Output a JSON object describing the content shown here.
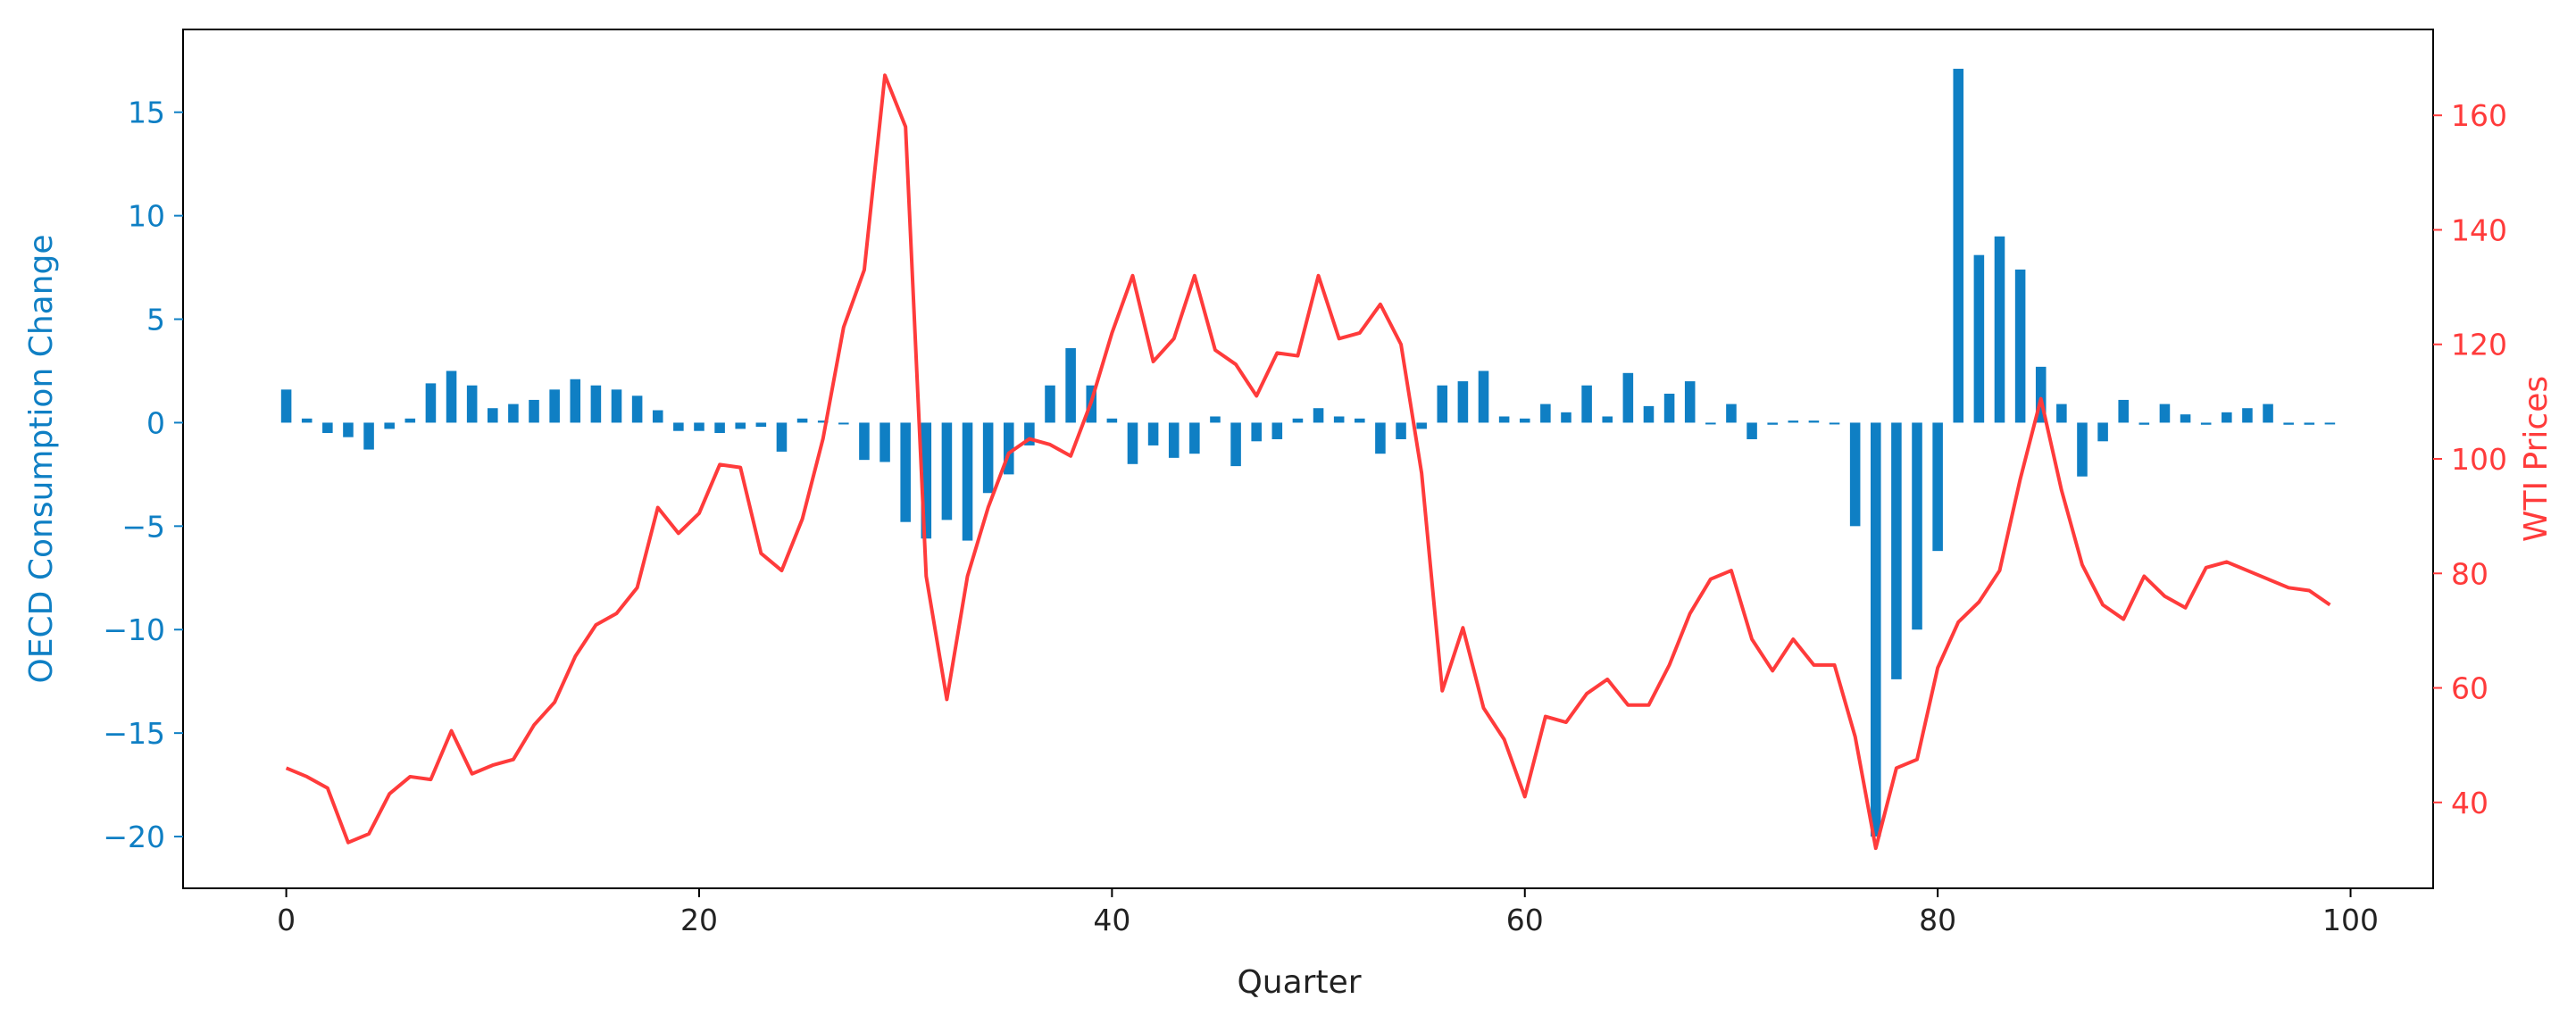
{
  "chart_data": {
    "type": "bar+line",
    "xlabel": "Quarter",
    "xlim": [
      -5,
      104
    ],
    "x_ticks": [
      0,
      20,
      40,
      60,
      80,
      100
    ],
    "x_tick_labels": [
      "0",
      "20",
      "40",
      "60",
      "80",
      "100"
    ],
    "grid": false,
    "legend": "none",
    "left_axis": {
      "label": "OECD Consumption Change",
      "color": "#0f7fc4",
      "ylim": [
        -22.5,
        19.0
      ],
      "ticks": [
        15,
        10,
        5,
        0,
        -5,
        -10,
        -15,
        -20
      ],
      "tick_labels": [
        "15",
        "10",
        "5",
        "0",
        "−5",
        "−10",
        "−15",
        "−20"
      ]
    },
    "right_axis": {
      "label": "WTI Prices",
      "color": "#ff3b3b",
      "ylim": [
        25,
        175
      ],
      "ticks": [
        160,
        140,
        120,
        100,
        80,
        60,
        40
      ],
      "tick_labels": [
        "160",
        "140",
        "120",
        "100",
        "80",
        "60",
        "40"
      ]
    },
    "bar_series": {
      "axis": "left",
      "color": "#0f7fc4",
      "values": [
        1.6,
        0.2,
        -0.5,
        -0.7,
        -1.3,
        -0.3,
        0.2,
        1.9,
        2.5,
        1.8,
        0.7,
        0.9,
        1.1,
        1.6,
        2.1,
        1.8,
        1.6,
        1.3,
        0.6,
        -0.4,
        -0.4,
        -0.5,
        -0.3,
        -0.2,
        -1.4,
        0.2,
        0.1,
        0.0,
        -1.8,
        -1.9,
        -4.8,
        -5.6,
        -4.7,
        -5.7,
        -3.4,
        -2.5,
        -1.1,
        1.8,
        3.6,
        1.8,
        0.2,
        -2.0,
        -1.1,
        -1.7,
        -1.5,
        0.3,
        -2.1,
        -0.9,
        -0.8,
        0.2,
        0.7,
        0.3,
        0.2,
        -1.5,
        -0.8,
        -0.3,
        1.8,
        2.0,
        2.5,
        0.3,
        0.2,
        0.9,
        0.5,
        1.8,
        0.3,
        2.4,
        0.8,
        1.4,
        2.0,
        0.0,
        0.9,
        -0.8,
        -0.1,
        0.1,
        0.1,
        0.0,
        -5.0,
        -20.0,
        -12.4,
        -10.0,
        -6.2,
        17.1,
        8.1,
        9.0,
        7.4,
        2.7,
        0.9,
        -2.6,
        -0.9,
        1.1,
        -0.1,
        0.9,
        0.4,
        -0.1,
        0.5,
        0.7,
        0.9,
        -0.1,
        -0.1,
        0.0
      ]
    },
    "line_series": {
      "axis": "right",
      "color": "#ff3b3b",
      "values": [
        46,
        44.5,
        42.5,
        33,
        34.5,
        41.5,
        44.5,
        44,
        52.5,
        45,
        46.5,
        47.5,
        53.5,
        57.5,
        65.5,
        71,
        73,
        77.5,
        91.5,
        87,
        90.5,
        99,
        98.5,
        83.5,
        80.5,
        89.5,
        103.5,
        123,
        133,
        167,
        158,
        79.5,
        58,
        79.5,
        91.5,
        101,
        103.5,
        102.5,
        100.5,
        110,
        122,
        132,
        117,
        121,
        132,
        119,
        116.5,
        111,
        118.5,
        118,
        132,
        121,
        122,
        127,
        120,
        97.5,
        59.5,
        70.5,
        56.5,
        51,
        41,
        55,
        54,
        59,
        61.5,
        57,
        57,
        64,
        73,
        79,
        80.5,
        68.5,
        63,
        68.5,
        64,
        64,
        51.5,
        32,
        46,
        47.5,
        63.5,
        71.5,
        75,
        80.5,
        96.5,
        110.5,
        94.5,
        81.5,
        74.5,
        72,
        79.5,
        76,
        74,
        81,
        82,
        80.5,
        79,
        77.5,
        77,
        74.5
      ]
    }
  }
}
